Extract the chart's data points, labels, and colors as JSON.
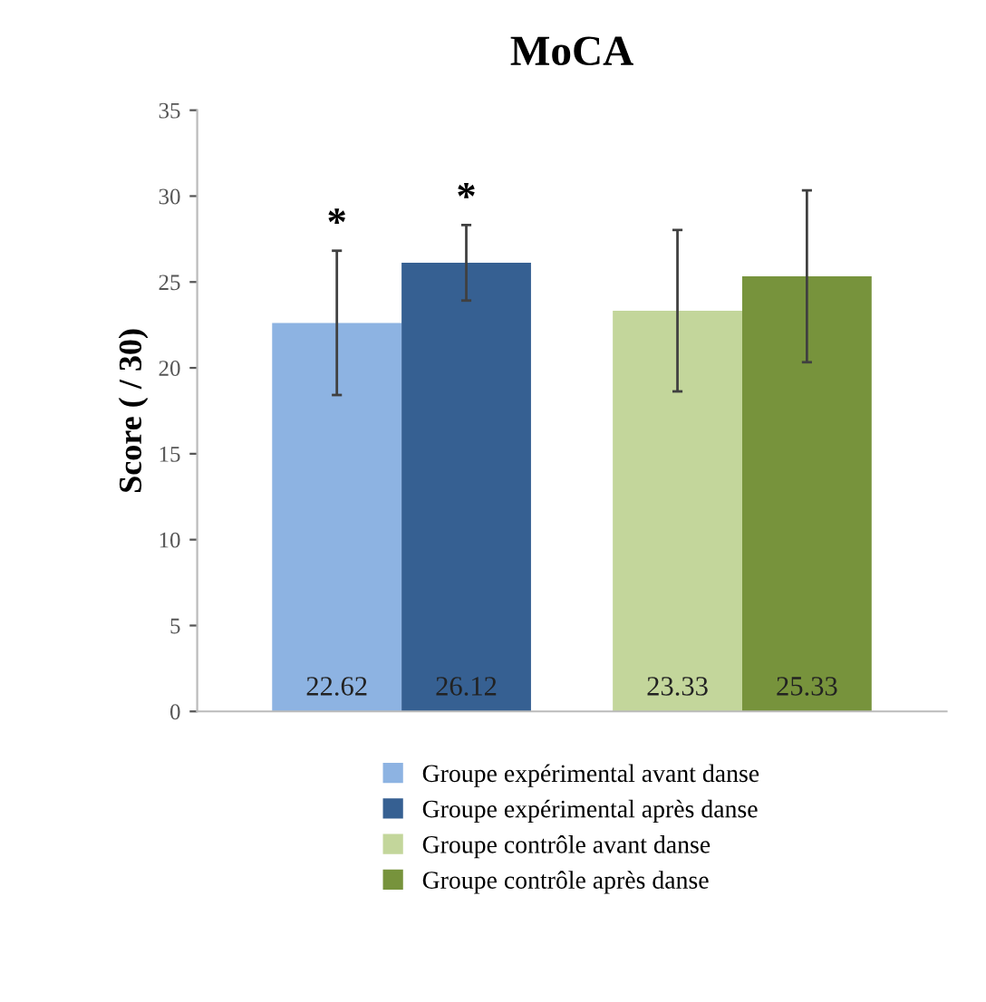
{
  "chart_data": {
    "type": "bar",
    "title": "MoCA",
    "ylabel": "Score ( / 30)",
    "categories": [
      null,
      null
    ],
    "series": [
      {
        "name": "Groupe expérimental avant danse",
        "color": "#8db3e2",
        "values": [
          22.62,
          null
        ],
        "errors": [
          4.2,
          null
        ]
      },
      {
        "name": "Groupe expérimental après danse",
        "color": "#366092",
        "values": [
          26.12,
          null
        ],
        "errors": [
          2.2,
          null
        ]
      },
      {
        "name": "Groupe contrôle avant danse",
        "color": "#c3d69b",
        "values": [
          null,
          23.33
        ],
        "errors": [
          null,
          4.7
        ]
      },
      {
        "name": "Groupe contrôle après danse",
        "color": "#77933c",
        "values": [
          null,
          25.33
        ],
        "errors": [
          null,
          5.0
        ]
      }
    ],
    "ylim": [
      0,
      35
    ],
    "yticks": [
      0,
      5,
      10,
      15,
      20,
      25,
      30,
      35
    ],
    "annotations": [
      "*",
      "*"
    ],
    "data_labels": true,
    "grid": false,
    "legend": "bottom"
  }
}
